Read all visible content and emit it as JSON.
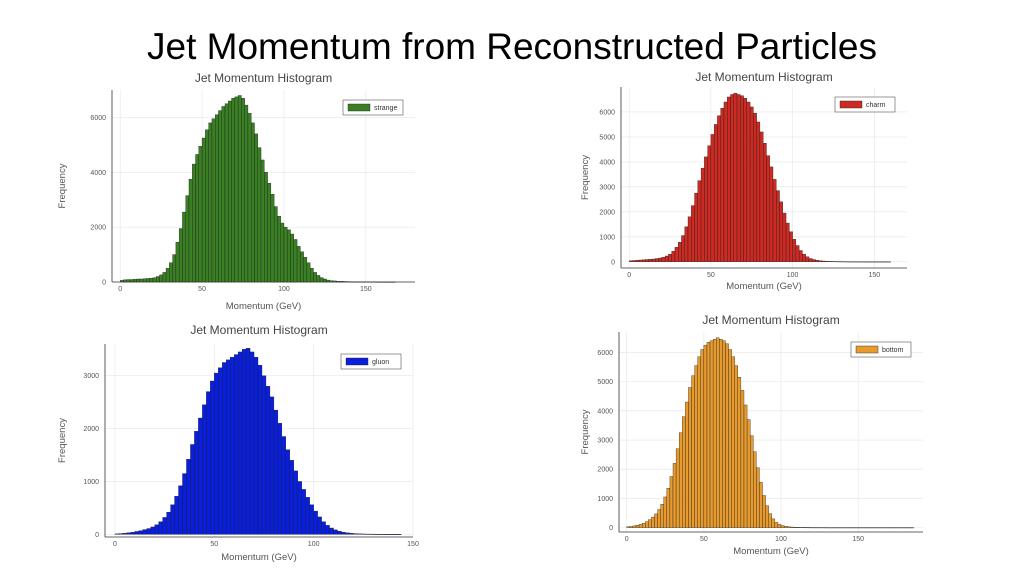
{
  "slide": {
    "title": "Jet Momentum from Reconstructed Particles"
  },
  "chart_data": [
    {
      "type": "bar",
      "title": "Jet Momentum Histogram",
      "xlabel": "Momentum (GeV)",
      "ylabel": "Frequency",
      "xlim": [
        -5,
        180
      ],
      "ylim": [
        0,
        7000
      ],
      "xticks": [
        0,
        50,
        100,
        150
      ],
      "yticks": [
        0,
        2000,
        4000,
        6000
      ],
      "grid": true,
      "legend_position": "top-right",
      "series": [
        {
          "name": "strange",
          "color": "#3a7f24",
          "bin_width": 2,
          "x": [
            0,
            2,
            4,
            6,
            8,
            10,
            12,
            14,
            16,
            18,
            20,
            22,
            24,
            26,
            28,
            30,
            32,
            34,
            36,
            38,
            40,
            42,
            44,
            46,
            48,
            50,
            52,
            54,
            56,
            58,
            60,
            62,
            64,
            66,
            68,
            70,
            72,
            74,
            76,
            78,
            80,
            82,
            84,
            86,
            88,
            90,
            92,
            94,
            96,
            98,
            100,
            102,
            104,
            106,
            108,
            110,
            112,
            114,
            116,
            118,
            120,
            122,
            124,
            126,
            128,
            130,
            132,
            134,
            136,
            138,
            140,
            142,
            144,
            146,
            148,
            150,
            152,
            154,
            156,
            158,
            160,
            162,
            164,
            166
          ],
          "values": [
            60,
            80,
            90,
            90,
            100,
            110,
            110,
            120,
            130,
            140,
            160,
            200,
            260,
            350,
            500,
            700,
            1000,
            1450,
            1950,
            2550,
            3150,
            3750,
            4300,
            4650,
            4950,
            5250,
            5550,
            5800,
            5950,
            6100,
            6250,
            6400,
            6500,
            6600,
            6700,
            6750,
            6800,
            6700,
            6450,
            6150,
            5800,
            5400,
            4900,
            4450,
            4000,
            3600,
            3200,
            2750,
            2400,
            2150,
            2000,
            1900,
            1750,
            1550,
            1300,
            1100,
            900,
            700,
            500,
            350,
            240,
            160,
            110,
            70,
            50,
            40,
            30,
            25,
            20,
            15,
            12,
            10,
            8,
            6,
            5,
            4,
            3,
            3,
            2,
            2,
            1,
            1,
            1,
            1
          ]
        }
      ]
    },
    {
      "type": "bar",
      "title": "Jet Momentum Histogram",
      "xlabel": "Momentum (GeV)",
      "ylabel": "Frequency",
      "xlim": [
        -5,
        170
      ],
      "ylim": [
        -250,
        7000
      ],
      "xticks": [
        0,
        50,
        100,
        150
      ],
      "yticks": [
        0,
        1000,
        2000,
        3000,
        4000,
        5000,
        6000
      ],
      "grid": true,
      "legend_position": "top-right",
      "series": [
        {
          "name": "charm",
          "color": "#cc2a22",
          "bin_width": 2,
          "x": [
            0,
            2,
            4,
            6,
            8,
            10,
            12,
            14,
            16,
            18,
            20,
            22,
            24,
            26,
            28,
            30,
            32,
            34,
            36,
            38,
            40,
            42,
            44,
            46,
            48,
            50,
            52,
            54,
            56,
            58,
            60,
            62,
            64,
            66,
            68,
            70,
            72,
            74,
            76,
            78,
            80,
            82,
            84,
            86,
            88,
            90,
            92,
            94,
            96,
            98,
            100,
            102,
            104,
            106,
            108,
            110,
            112,
            114,
            116,
            118,
            120,
            122,
            124,
            126,
            128,
            130,
            132,
            134,
            136,
            138,
            140,
            142,
            144,
            146,
            148,
            150,
            152,
            154,
            156,
            158
          ],
          "values": [
            40,
            50,
            60,
            70,
            80,
            90,
            100,
            110,
            130,
            150,
            180,
            230,
            300,
            420,
            580,
            780,
            1050,
            1400,
            1800,
            2250,
            2750,
            3250,
            3750,
            4200,
            4650,
            5100,
            5500,
            5850,
            6150,
            6400,
            6600,
            6700,
            6750,
            6700,
            6650,
            6550,
            6400,
            6200,
            5950,
            5600,
            5200,
            4750,
            4250,
            3800,
            3300,
            2850,
            2400,
            1950,
            1550,
            1200,
            900,
            650,
            450,
            300,
            200,
            130,
            90,
            60,
            40,
            30,
            20,
            15,
            12,
            10,
            8,
            6,
            5,
            4,
            3,
            3,
            2,
            2,
            1,
            1,
            1,
            1,
            1,
            1,
            1,
            1
          ]
        }
      ]
    },
    {
      "type": "bar",
      "title": "Jet Momentum Histogram",
      "xlabel": "Momentum (GeV)",
      "ylabel": "Frequency",
      "xlim": [
        -5,
        150
      ],
      "ylim": [
        -50,
        3600
      ],
      "xticks": [
        0,
        50,
        100,
        150
      ],
      "yticks": [
        0,
        1000,
        2000,
        3000
      ],
      "grid": true,
      "legend_position": "top-right",
      "series": [
        {
          "name": "gluon",
          "color": "#0a1fdc",
          "bin_width": 2,
          "x": [
            0,
            2,
            4,
            6,
            8,
            10,
            12,
            14,
            16,
            18,
            20,
            22,
            24,
            26,
            28,
            30,
            32,
            34,
            36,
            38,
            40,
            42,
            44,
            46,
            48,
            50,
            52,
            54,
            56,
            58,
            60,
            62,
            64,
            66,
            68,
            70,
            72,
            74,
            76,
            78,
            80,
            82,
            84,
            86,
            88,
            90,
            92,
            94,
            96,
            98,
            100,
            102,
            104,
            106,
            108,
            110,
            112,
            114,
            116,
            118,
            120,
            122,
            124,
            126,
            128,
            130,
            132,
            134,
            136,
            138,
            140,
            142
          ],
          "values": [
            10,
            15,
            20,
            30,
            40,
            55,
            70,
            90,
            110,
            140,
            180,
            240,
            320,
            420,
            560,
            720,
            920,
            1150,
            1420,
            1700,
            1950,
            2200,
            2450,
            2700,
            2900,
            3050,
            3150,
            3250,
            3300,
            3350,
            3400,
            3450,
            3500,
            3520,
            3450,
            3350,
            3200,
            3000,
            2800,
            2600,
            2350,
            2100,
            1850,
            1600,
            1400,
            1200,
            1000,
            850,
            700,
            560,
            440,
            330,
            240,
            170,
            120,
            85,
            60,
            40,
            28,
            20,
            14,
            10,
            8,
            6,
            5,
            4,
            3,
            3,
            2,
            2,
            1,
            1
          ]
        }
      ]
    },
    {
      "type": "bar",
      "title": "Jet Momentum Histogram",
      "xlabel": "Momentum (GeV)",
      "ylabel": "Frequency",
      "xlim": [
        -5,
        192
      ],
      "ylim": [
        -150,
        6700
      ],
      "xticks": [
        0,
        50,
        100,
        150
      ],
      "yticks": [
        0,
        1000,
        2000,
        3000,
        4000,
        5000,
        6000
      ],
      "grid": true,
      "legend_position": "top-right",
      "series": [
        {
          "name": "bottom",
          "color": "#e79a2e",
          "bin_width": 2,
          "x": [
            0,
            2,
            4,
            6,
            8,
            10,
            12,
            14,
            16,
            18,
            20,
            22,
            24,
            26,
            28,
            30,
            32,
            34,
            36,
            38,
            40,
            42,
            44,
            46,
            48,
            50,
            52,
            54,
            56,
            58,
            60,
            62,
            64,
            66,
            68,
            70,
            72,
            74,
            76,
            78,
            80,
            82,
            84,
            86,
            88,
            90,
            92,
            94,
            96,
            98,
            100,
            102,
            104,
            106,
            108,
            110,
            112,
            114,
            116,
            118,
            120,
            122,
            124,
            126,
            128,
            130,
            132,
            134,
            136,
            138,
            140,
            142,
            144,
            146,
            148,
            150,
            152,
            154,
            156,
            158,
            160,
            162,
            164,
            166,
            168,
            170,
            172,
            174,
            176,
            178,
            180,
            182,
            184
          ],
          "values": [
            30,
            40,
            60,
            80,
            110,
            150,
            200,
            270,
            360,
            470,
            620,
            800,
            1050,
            1350,
            1750,
            2200,
            2700,
            3250,
            3800,
            4300,
            4800,
            5200,
            5550,
            5850,
            6100,
            6250,
            6350,
            6400,
            6450,
            6500,
            6450,
            6400,
            6300,
            6100,
            5850,
            5550,
            5150,
            4700,
            4200,
            3700,
            3150,
            2600,
            2050,
            1550,
            1100,
            750,
            480,
            300,
            180,
            110,
            70,
            45,
            30,
            20,
            15,
            10,
            8,
            6,
            5,
            4,
            3,
            3,
            2,
            2,
            2,
            1,
            1,
            1,
            1,
            1,
            1,
            1,
            1,
            1,
            1,
            1,
            1,
            1,
            1,
            1,
            1,
            1,
            1,
            1,
            1,
            1,
            1,
            1,
            1,
            1,
            1,
            1,
            1
          ]
        }
      ]
    }
  ]
}
